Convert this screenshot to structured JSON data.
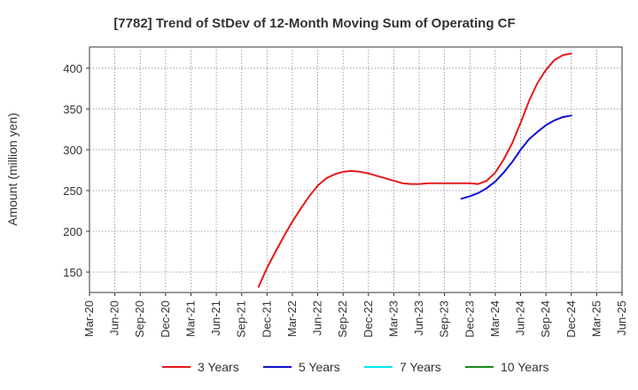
{
  "chart_data": {
    "type": "line",
    "title": "[7782]  Trend of StDev of 12-Month Moving Sum of Operating CF",
    "xlabel": "",
    "ylabel": "Amount (million yen)",
    "x_tick_labels": [
      "Mar-20",
      "Jun-20",
      "Sep-20",
      "Dec-20",
      "Mar-21",
      "Jun-21",
      "Sep-21",
      "Dec-21",
      "Mar-22",
      "Jun-22",
      "Sep-22",
      "Dec-22",
      "Mar-23",
      "Jun-23",
      "Sep-23",
      "Dec-23",
      "Mar-24",
      "Jun-24",
      "Sep-24",
      "Dec-24",
      "Mar-25",
      "Jun-25"
    ],
    "y_ticks": [
      150,
      200,
      250,
      300,
      350,
      400
    ],
    "ylim": [
      125,
      426
    ],
    "grid": true,
    "legend_position": "bottom",
    "series": [
      {
        "name": "3 Years",
        "color": "#e31a1c",
        "x": [
          "Nov-21",
          "Dec-21",
          "Jan-22",
          "Feb-22",
          "Mar-22",
          "Apr-22",
          "May-22",
          "Jun-22",
          "Jul-22",
          "Aug-22",
          "Sep-22",
          "Oct-22",
          "Nov-22",
          "Dec-22",
          "Jan-23",
          "Feb-23",
          "Mar-23",
          "Apr-23",
          "May-23",
          "Jun-23",
          "Jul-23",
          "Aug-23",
          "Sep-23",
          "Oct-23",
          "Nov-23",
          "Dec-23",
          "Jan-24",
          "Feb-24",
          "Mar-24",
          "Apr-24",
          "May-24",
          "Jun-24",
          "Jul-24",
          "Aug-24",
          "Sep-24",
          "Oct-24",
          "Nov-24",
          "Dec-24"
        ],
        "values": [
          132,
          155,
          175,
          194,
          212,
          228,
          243,
          256,
          265,
          270,
          273,
          274,
          273,
          271,
          268,
          265,
          262,
          259,
          258,
          258,
          259,
          259,
          259,
          259,
          259,
          259,
          258,
          262,
          272,
          288,
          308,
          333,
          360,
          382,
          398,
          410,
          416,
          418
        ]
      },
      {
        "name": "5 Years",
        "color": "#1010d0",
        "x": [
          "Nov-23",
          "Dec-23",
          "Jan-24",
          "Feb-24",
          "Mar-24",
          "Apr-24",
          "May-24",
          "Jun-24",
          "Jul-24",
          "Aug-24",
          "Sep-24",
          "Oct-24",
          "Nov-24",
          "Dec-24"
        ],
        "values": [
          240,
          243,
          247,
          253,
          261,
          272,
          285,
          300,
          313,
          322,
          330,
          336,
          340,
          342
        ]
      },
      {
        "name": "7 Years",
        "color": "#00e5ee",
        "x": [],
        "values": []
      },
      {
        "name": "10 Years",
        "color": "#1a8a1a",
        "x": [],
        "values": []
      }
    ]
  }
}
